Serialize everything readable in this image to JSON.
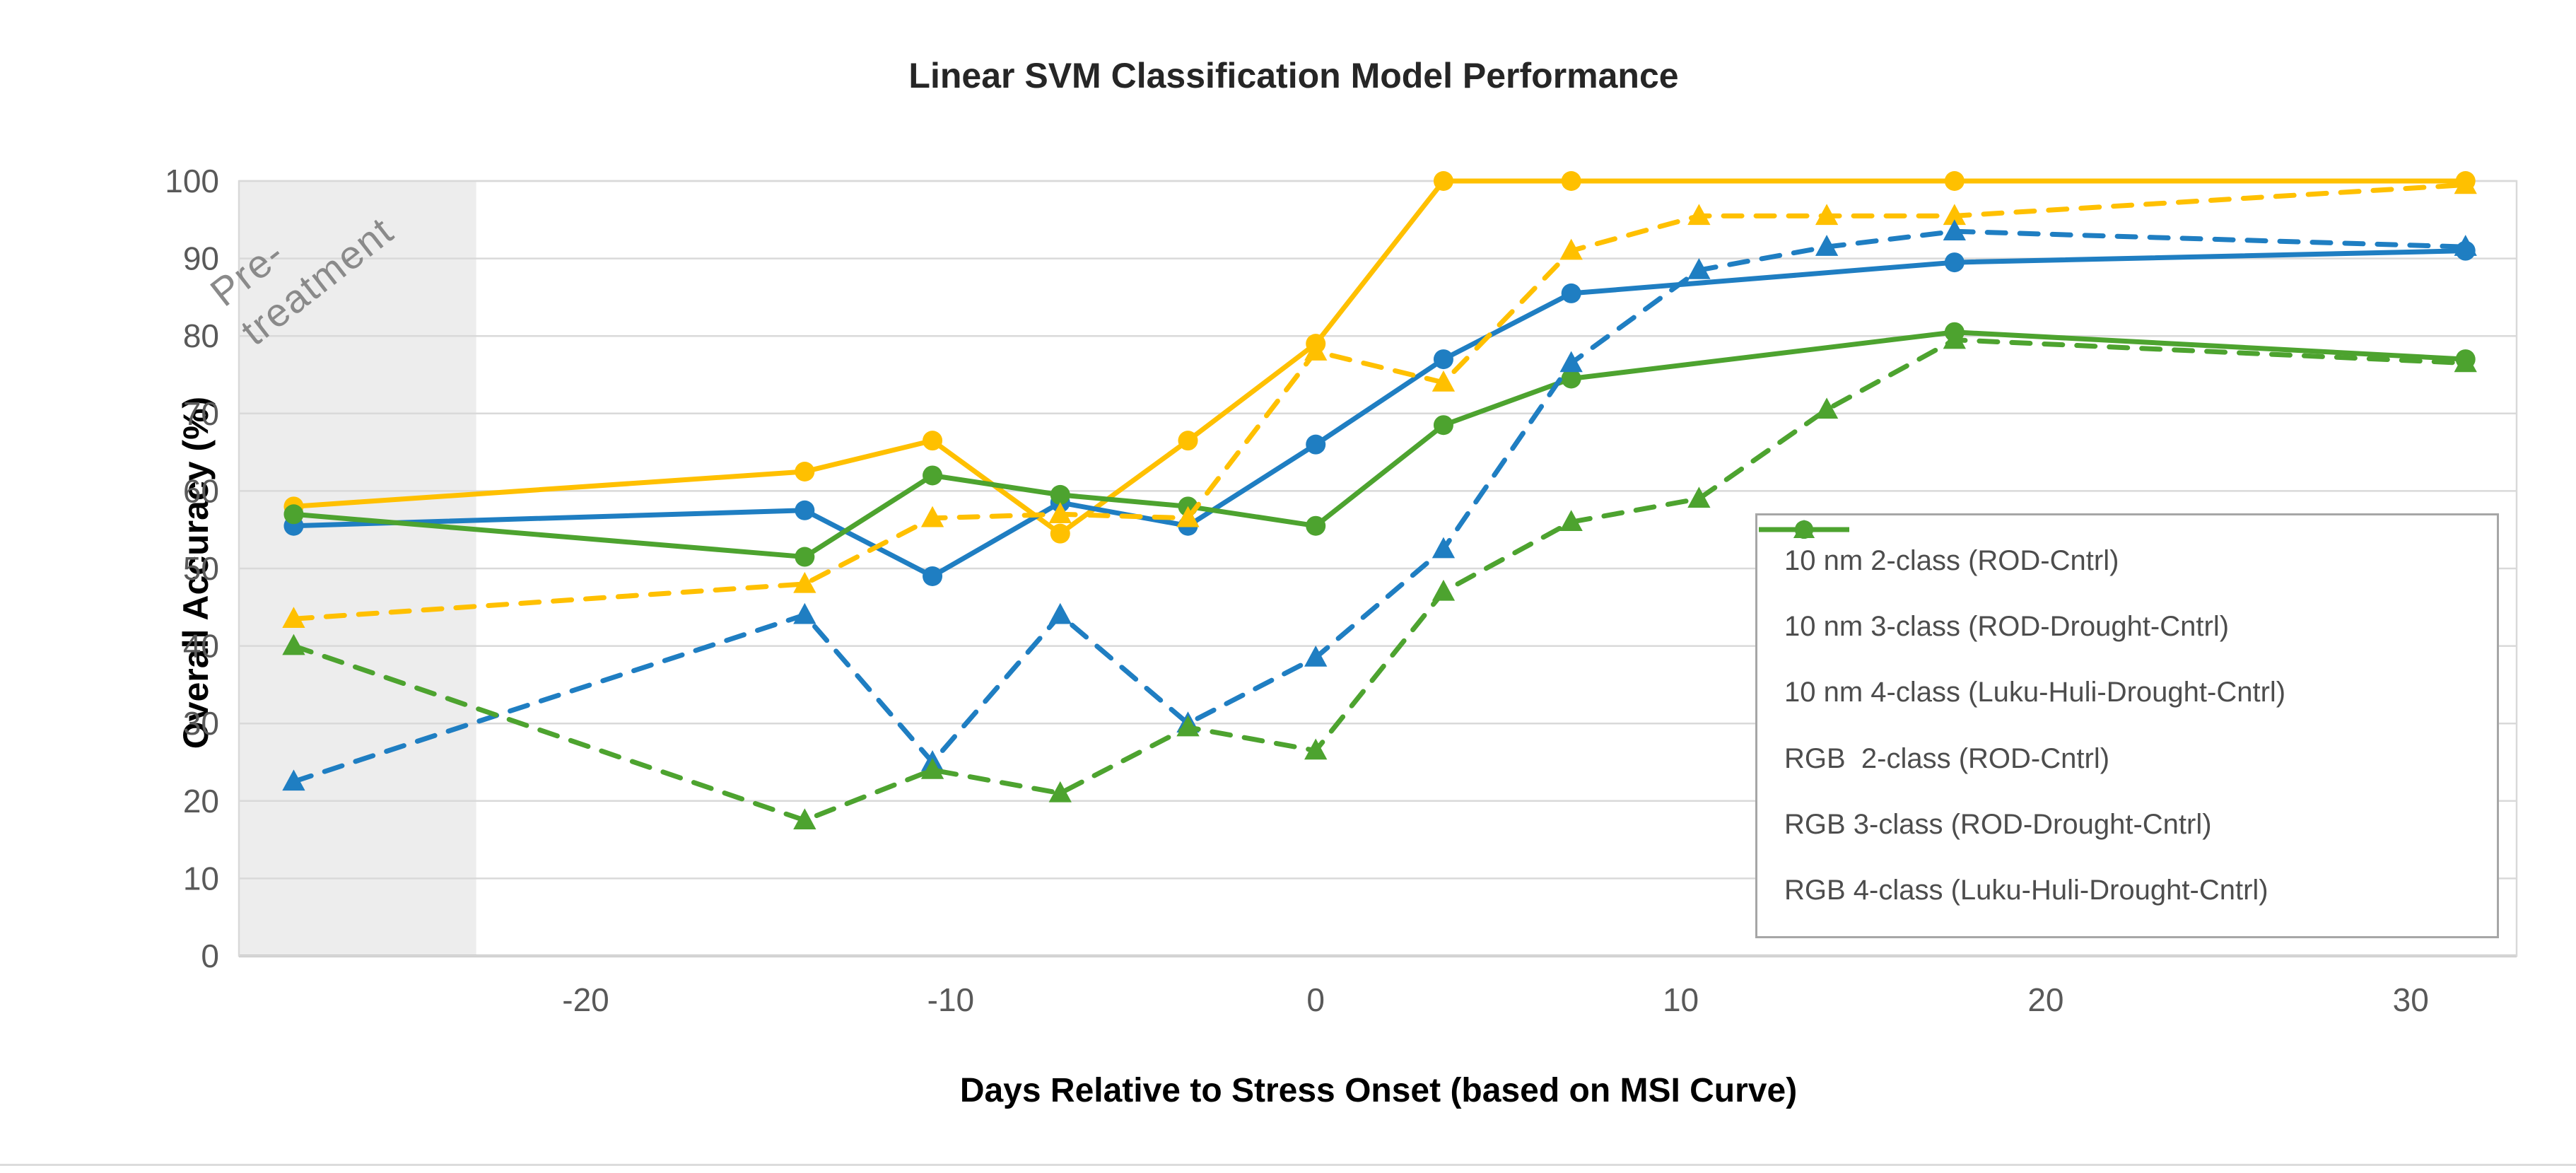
{
  "title": "Linear SVM Classification Model Performance",
  "axes": {
    "x_label": "Days Relative to Stress Onset (based on MSI Curve)",
    "y_label": "Overall  Accuracy (%)",
    "x_ticks": [
      -20,
      -10,
      0,
      10,
      20,
      30
    ],
    "y_ticks": [
      0,
      10,
      20,
      30,
      40,
      50,
      60,
      70,
      80,
      90,
      100
    ],
    "x_range": [
      -29.5,
      32.9
    ],
    "y_range": [
      0,
      100
    ]
  },
  "annotation": {
    "pretreatment_line1": "Pre-",
    "pretreatment_line2": "treatment",
    "band_x_range": [
      -29.5,
      -23
    ]
  },
  "colors": {
    "gold": "#FFC000",
    "blue": "#1F7EC2",
    "green": "#4DA32F",
    "gridline": "#D9D9D9",
    "axis_line": "#BFBFBF",
    "band_fill": "#EDEDED",
    "tick_text": "#595959",
    "legend_text": "#4D4D4D",
    "legend_border": "#A6A6A6"
  },
  "chart_data": {
    "type": "line",
    "title": "Linear SVM Classification Model Performance",
    "xlabel": "Days Relative to Stress Onset (based on MSI Curve)",
    "ylabel": "Overall  Accuracy (%)",
    "xlim": [
      -29.5,
      32.9
    ],
    "ylim": [
      0,
      100
    ],
    "grid": "horizontal",
    "legend_position": "inside-right",
    "series": [
      {
        "name": "10 nm 2-class (ROD-Cntrl)",
        "color": "#FFC000",
        "line_style": "solid",
        "marker": "circle",
        "x": [
          -28,
          -14,
          -10.5,
          -7,
          -3.5,
          0,
          3.5,
          7,
          17.5,
          31.5
        ],
        "y": [
          58,
          62.5,
          66.5,
          54.5,
          66.5,
          79,
          100,
          100,
          100,
          100
        ]
      },
      {
        "name": "10 nm 3-class (ROD-Drought-Cntrl)",
        "color": "#1F7EC2",
        "line_style": "solid",
        "marker": "circle",
        "x": [
          -28,
          -14,
          -10.5,
          -7,
          -3.5,
          0,
          3.5,
          7,
          17.5,
          31.5
        ],
        "y": [
          55.5,
          57.5,
          49,
          58.5,
          55.5,
          66,
          77,
          85.5,
          89.5,
          91
        ]
      },
      {
        "name": "10 nm 4-class (Luku-Huli-Drought-Cntrl)",
        "color": "#4DA32F",
        "line_style": "solid",
        "marker": "circle",
        "x": [
          -28,
          -14,
          -10.5,
          -7,
          -3.5,
          0,
          3.5,
          7,
          17.5,
          31.5
        ],
        "y": [
          57,
          51.5,
          62,
          59.5,
          58,
          55.5,
          68.5,
          74.5,
          80.5,
          77
        ]
      },
      {
        "name": "RGB  2-class (ROD-Cntrl)",
        "color": "#FFC000",
        "line_style": "dashed",
        "marker": "triangle",
        "x": [
          -28,
          -14,
          -10.5,
          -7,
          -3.5,
          0,
          3.5,
          7,
          10.5,
          14,
          17.5,
          31.5
        ],
        "y": [
          43.5,
          48,
          56.5,
          57,
          56.5,
          78,
          74,
          91,
          95.5,
          95.5,
          95.5,
          99.5
        ]
      },
      {
        "name": "RGB 3-class (ROD-Drought-Cntrl)",
        "color": "#1F7EC2",
        "line_style": "dashed",
        "marker": "triangle",
        "x": [
          -28,
          -14,
          -10.5,
          -7,
          -3.5,
          0,
          3.5,
          7,
          10.5,
          14,
          17.5,
          31.5
        ],
        "y": [
          22.5,
          44,
          25,
          44,
          30,
          38.5,
          52.5,
          76.5,
          88.5,
          91.5,
          93.5,
          91.5
        ]
      },
      {
        "name": "RGB 4-class (Luku-Huli-Drought-Cntrl)",
        "color": "#4DA32F",
        "line_style": "dashed",
        "marker": "triangle",
        "x": [
          -28,
          -14,
          -10.5,
          -7,
          -3.5,
          0,
          3.5,
          7,
          10.5,
          14,
          17.5,
          31.5
        ],
        "y": [
          40,
          17.5,
          24,
          21,
          29.5,
          26.5,
          47,
          56,
          59,
          70.5,
          79.5,
          76.5
        ]
      }
    ]
  }
}
